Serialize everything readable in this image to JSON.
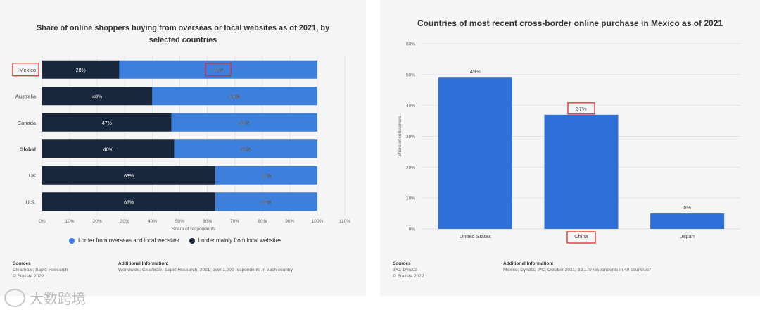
{
  "colors": {
    "blue": "#3d7fdc",
    "navy": "#18273b",
    "highlight": "#e02a2a",
    "grid": "#e4e4e4",
    "bar_blue": "#2e6fd8"
  },
  "watermark": {
    "text": "大数跨境",
    "icon": "logo-icon"
  },
  "chart_data": [
    {
      "type": "bar",
      "orientation": "horizontal-stacked",
      "title": "Share of online shoppers buying from overseas or local websites as of 2021, by selected countries",
      "categories": [
        "Mexico",
        "Australia",
        "Canada",
        "Global",
        "UK",
        "U.S."
      ],
      "series": [
        {
          "name": "I order mainly from local websites",
          "values": [
            28,
            40,
            47,
            48,
            63,
            63
          ]
        },
        {
          "name": "I order from overseas and local websites",
          "values": [
            72,
            60,
            53,
            52,
            37,
            37
          ]
        }
      ],
      "value_labels": [
        [
          "28%",
          "40%",
          "47%",
          "48%",
          "63%",
          "63%"
        ],
        [
          "72%",
          "60%",
          "53%",
          "52%",
          "37%",
          "37%"
        ]
      ],
      "xlabel": "Share of respondents",
      "xlim": [
        0,
        110
      ],
      "xticks": [
        "0%",
        "10%",
        "20%",
        "30%",
        "40%",
        "50%",
        "60%",
        "70%",
        "80%",
        "90%",
        "100%",
        "110%"
      ],
      "highlighted_category": "Mexico",
      "bold_category": "Global",
      "legend": [
        "I order from overseas and local websites",
        "I order mainly from local websites"
      ],
      "sources": {
        "heading": "Sources",
        "lines": [
          "ClearSale; Sapio Research",
          "© Statista 2022"
        ]
      },
      "additional": {
        "heading": "Additional Information:",
        "text": "Worldwide; ClearSale; Sapio Research; 2021; over 1,000 respondents in each country"
      }
    },
    {
      "type": "bar",
      "title": "Countries of most recent cross-border online purchase in Mexico as of 2021",
      "categories": [
        "United States",
        "China",
        "Japan"
      ],
      "values": [
        49,
        37,
        5
      ],
      "value_labels": [
        "49%",
        "37%",
        "5%"
      ],
      "ylabel": "Share of consumers",
      "ylim": [
        0,
        60
      ],
      "yticks": [
        "0%",
        "10%",
        "20%",
        "30%",
        "40%",
        "50%",
        "60%"
      ],
      "highlighted_category": "China",
      "sources": {
        "heading": "Sources",
        "lines": [
          "IPC; Dynata",
          "© Statista 2022"
        ]
      },
      "additional": {
        "heading": "Additional Information:",
        "text": "Mexico; Dynata; IPC; October 2021; 33,179 respondents in 40 countries*"
      }
    }
  ]
}
